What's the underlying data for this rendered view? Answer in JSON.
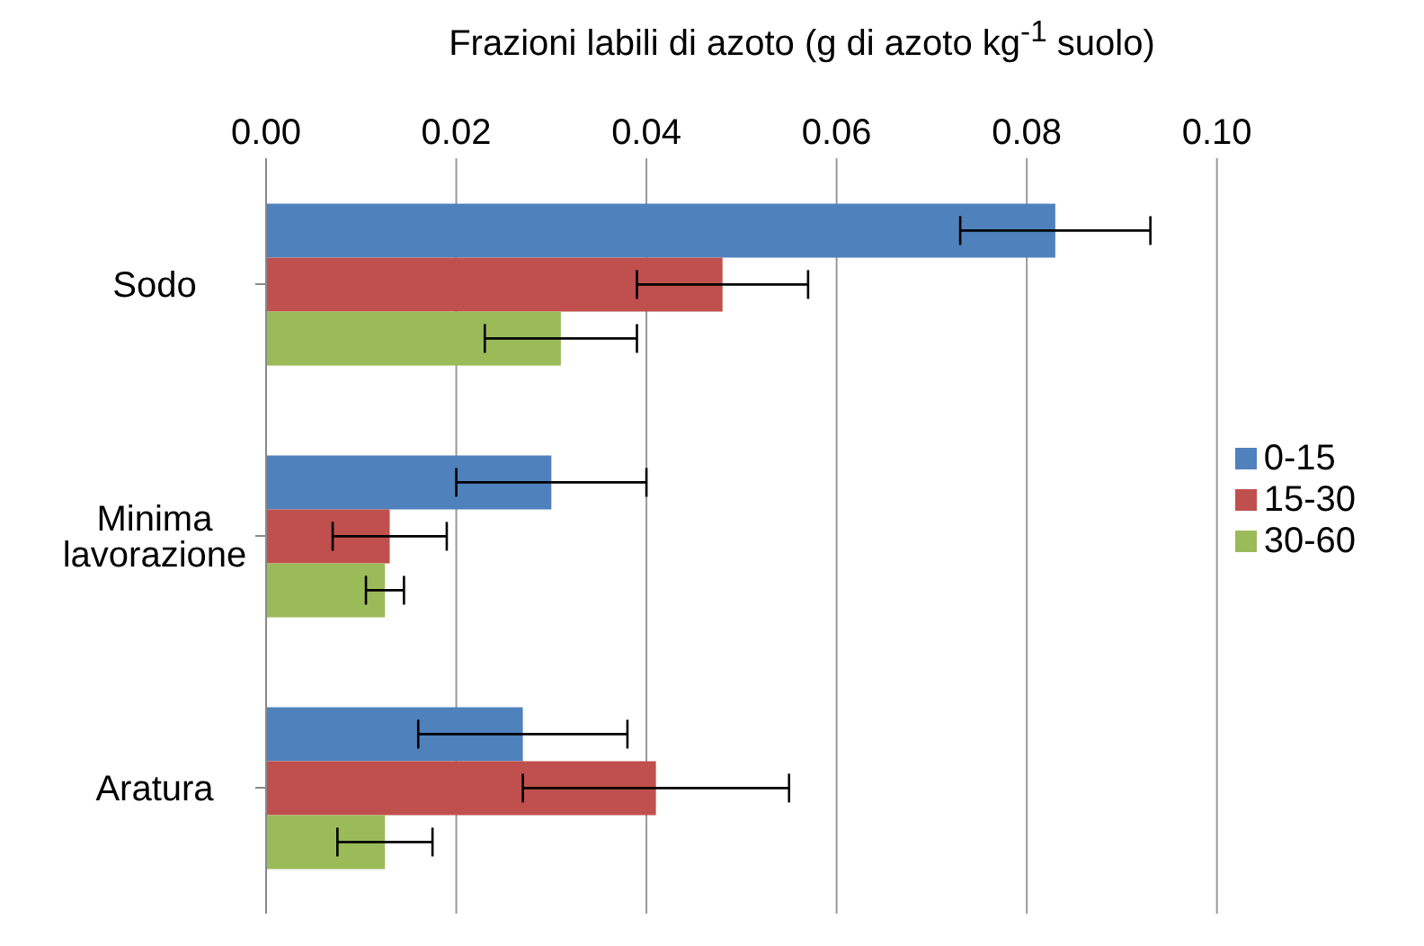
{
  "chart_data": {
    "type": "bar",
    "orientation": "horizontal",
    "title": "Frazioni labili di azoto (g di azoto kg$^{-1}$ suolo)",
    "categories": [
      "Sodo",
      "Minima lavorazione",
      "Aratura"
    ],
    "series": [
      {
        "name": "0-15",
        "color": "#4f81bd",
        "values": [
          0.083,
          0.03,
          0.027
        ],
        "errors": [
          0.01,
          0.01,
          0.011
        ]
      },
      {
        "name": "15-30",
        "color": "#c0504d",
        "values": [
          0.048,
          0.013,
          0.041
        ],
        "errors": [
          0.009,
          0.006,
          0.014
        ]
      },
      {
        "name": "30-60",
        "color": "#9bbb59",
        "values": [
          0.031,
          0.0125,
          0.0125
        ],
        "errors": [
          0.008,
          0.002,
          0.005
        ]
      }
    ],
    "xlim": [
      0,
      0.1
    ],
    "xticks": [
      {
        "value": 0,
        "label": "0.00"
      },
      {
        "value": 0.02,
        "label": "0.02"
      },
      {
        "value": 0.04,
        "label": "0.04"
      },
      {
        "value": 0.06,
        "label": "0.06"
      },
      {
        "value": 0.08,
        "label": "0.08"
      },
      {
        "value": 0.1,
        "label": "0.10"
      }
    ],
    "grid": "x",
    "legend": "right"
  }
}
